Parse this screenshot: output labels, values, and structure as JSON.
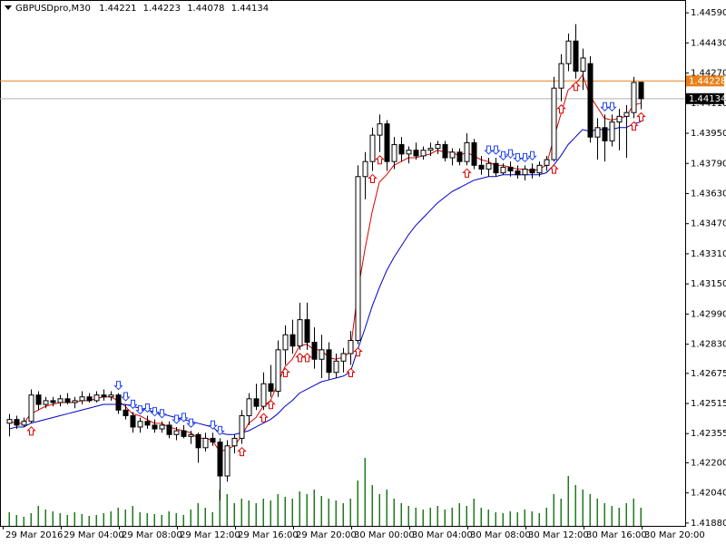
{
  "chart_data": {
    "type": "candlestick",
    "title": "GBPUSDpro,M30",
    "ylim": [
      1.41865,
      1.44658
    ],
    "yticks": [
      {
        "value": 1.4459,
        "label": "1.44590"
      },
      {
        "value": 1.4443,
        "label": "1.44430"
      },
      {
        "value": 1.4427,
        "label": "1.44270"
      },
      {
        "value": 1.4411,
        "label": "1.44110"
      },
      {
        "value": 1.4395,
        "label": "1.43950"
      },
      {
        "value": 1.4379,
        "label": "1.43790"
      },
      {
        "value": 1.4363,
        "label": "1.43630"
      },
      {
        "value": 1.4347,
        "label": "1.43470"
      },
      {
        "value": 1.4331,
        "label": "1.43310"
      },
      {
        "value": 1.4315,
        "label": "1.43150"
      },
      {
        "value": 1.4299,
        "label": "1.42990"
      },
      {
        "value": 1.4283,
        "label": "1.42830"
      },
      {
        "value": 1.42675,
        "label": "1.42675"
      },
      {
        "value": 1.42515,
        "label": "1.42515"
      },
      {
        "value": 1.42355,
        "label": "1.42355"
      },
      {
        "value": 1.422,
        "label": "1.42200"
      },
      {
        "value": 1.4204,
        "label": "1.42040"
      },
      {
        "value": 1.4188,
        "label": "1.41880"
      }
    ],
    "time_labels": [
      "29 Mar 2016",
      "29 Mar 04:00",
      "29 Mar 08:00",
      "29 Mar 12:00",
      "29 Mar 16:00",
      "29 Mar 20:00",
      "30 Mar 00:00",
      "30 Mar 04:00",
      "30 Mar 08:00",
      "30 Mar 12:00",
      "30 Mar 16:00",
      "30 Mar 20:00"
    ],
    "ask_line": {
      "value": 1.44228,
      "color": "#e8801a"
    },
    "bid_line_color": "#b0b0b0",
    "candles": [
      [
        1.4241,
        1.4246,
        1.4234,
        1.4243
      ],
      [
        1.4243,
        1.4245,
        1.4238,
        1.424
      ],
      [
        1.424,
        1.4244,
        1.4239,
        1.4242
      ],
      [
        1.4242,
        1.4259,
        1.4241,
        1.4256
      ],
      [
        1.4256,
        1.4258,
        1.4248,
        1.4251
      ],
      [
        1.4251,
        1.4255,
        1.4249,
        1.4253
      ],
      [
        1.4253,
        1.4255,
        1.425,
        1.4252
      ],
      [
        1.4252,
        1.4256,
        1.425,
        1.4254
      ],
      [
        1.4254,
        1.4257,
        1.4251,
        1.4252
      ],
      [
        1.4252,
        1.4255,
        1.4249,
        1.4253
      ],
      [
        1.4253,
        1.4258,
        1.4251,
        1.4255
      ],
      [
        1.4255,
        1.4257,
        1.4252,
        1.4253
      ],
      [
        1.4253,
        1.4258,
        1.4252,
        1.4256
      ],
      [
        1.4256,
        1.4259,
        1.4253,
        1.4255
      ],
      [
        1.4255,
        1.4258,
        1.4253,
        1.4256
      ],
      [
        1.4256,
        1.4257,
        1.4246,
        1.4248
      ],
      [
        1.4248,
        1.4251,
        1.4243,
        1.4245
      ],
      [
        1.4245,
        1.4247,
        1.4236,
        1.4239
      ],
      [
        1.4239,
        1.4244,
        1.4236,
        1.4242
      ],
      [
        1.4242,
        1.4245,
        1.4238,
        1.424
      ],
      [
        1.424,
        1.4243,
        1.4236,
        1.4238
      ],
      [
        1.4238,
        1.4242,
        1.4236,
        1.424
      ],
      [
        1.424,
        1.4242,
        1.4233,
        1.4235
      ],
      [
        1.4235,
        1.4239,
        1.4232,
        1.4237
      ],
      [
        1.4237,
        1.424,
        1.4233,
        1.4234
      ],
      [
        1.4234,
        1.4237,
        1.423,
        1.4235
      ],
      [
        1.4235,
        1.4236,
        1.422,
        1.4228
      ],
      [
        1.4228,
        1.4236,
        1.4226,
        1.4233
      ],
      [
        1.4233,
        1.4236,
        1.4229,
        1.4231
      ],
      [
        1.4231,
        1.4233,
        1.42,
        1.4213
      ],
      [
        1.4213,
        1.4232,
        1.421,
        1.4229
      ],
      [
        1.4229,
        1.4235,
        1.4225,
        1.4233
      ],
      [
        1.4233,
        1.4248,
        1.423,
        1.4245
      ],
      [
        1.4245,
        1.4257,
        1.424,
        1.4254
      ],
      [
        1.4254,
        1.4262,
        1.4248,
        1.425
      ],
      [
        1.425,
        1.4268,
        1.4248,
        1.4262
      ],
      [
        1.4262,
        1.4272,
        1.4255,
        1.4258
      ],
      [
        1.4258,
        1.4285,
        1.4255,
        1.428
      ],
      [
        1.428,
        1.4293,
        1.4272,
        1.4288
      ],
      [
        1.4288,
        1.4296,
        1.4278,
        1.4282
      ],
      [
        1.4282,
        1.4305,
        1.428,
        1.4296
      ],
      [
        1.4296,
        1.4305,
        1.428,
        1.4284
      ],
      [
        1.4284,
        1.4292,
        1.427,
        1.4275
      ],
      [
        1.4275,
        1.4288,
        1.4265,
        1.428
      ],
      [
        1.428,
        1.4284,
        1.4264,
        1.4268
      ],
      [
        1.4268,
        1.4278,
        1.4265,
        1.4274
      ],
      [
        1.4274,
        1.4281,
        1.4268,
        1.4278
      ],
      [
        1.4278,
        1.429,
        1.4272,
        1.4285
      ],
      [
        1.4285,
        1.4378,
        1.4283,
        1.4372
      ],
      [
        1.4372,
        1.4385,
        1.436,
        1.438
      ],
      [
        1.438,
        1.4398,
        1.4375,
        1.4394
      ],
      [
        1.4394,
        1.4405,
        1.4385,
        1.44
      ],
      [
        1.44,
        1.4402,
        1.4375,
        1.438
      ],
      [
        1.438,
        1.4393,
        1.4376,
        1.4389
      ],
      [
        1.4389,
        1.4393,
        1.438,
        1.4384
      ],
      [
        1.4384,
        1.4388,
        1.4379,
        1.4386
      ],
      [
        1.4386,
        1.439,
        1.4381,
        1.4383
      ],
      [
        1.4383,
        1.4388,
        1.4381,
        1.4386
      ],
      [
        1.4386,
        1.439,
        1.4383,
        1.4387
      ],
      [
        1.4387,
        1.4391,
        1.4384,
        1.4389
      ],
      [
        1.4389,
        1.4391,
        1.438,
        1.4382
      ],
      [
        1.4382,
        1.4387,
        1.4378,
        1.4385
      ],
      [
        1.4385,
        1.4387,
        1.4378,
        1.438
      ],
      [
        1.438,
        1.4395,
        1.4378,
        1.439
      ],
      [
        1.439,
        1.4392,
        1.4376,
        1.4378
      ],
      [
        1.4378,
        1.4383,
        1.4373,
        1.4376
      ],
      [
        1.4376,
        1.4382,
        1.4372,
        1.4379
      ],
      [
        1.4379,
        1.4382,
        1.4372,
        1.4374
      ],
      [
        1.4374,
        1.4379,
        1.4373,
        1.4377
      ],
      [
        1.4377,
        1.438,
        1.4372,
        1.4375
      ],
      [
        1.4375,
        1.4378,
        1.4371,
        1.4373
      ],
      [
        1.4373,
        1.4378,
        1.437,
        1.4376
      ],
      [
        1.4376,
        1.4379,
        1.4371,
        1.4374
      ],
      [
        1.4374,
        1.438,
        1.4372,
        1.4378
      ],
      [
        1.4378,
        1.4383,
        1.4375,
        1.4381
      ],
      [
        1.4381,
        1.4425,
        1.438,
        1.4419
      ],
      [
        1.4419,
        1.4437,
        1.4412,
        1.4432
      ],
      [
        1.4432,
        1.4448,
        1.4428,
        1.4444
      ],
      [
        1.4444,
        1.4453,
        1.4424,
        1.4428
      ],
      [
        1.4428,
        1.444,
        1.4418,
        1.4435
      ],
      [
        1.4432,
        1.4436,
        1.439,
        1.4393
      ],
      [
        1.4393,
        1.4403,
        1.4381,
        1.4398
      ],
      [
        1.4398,
        1.4405,
        1.438,
        1.4391
      ],
      [
        1.4391,
        1.4405,
        1.4388,
        1.4401
      ],
      [
        1.4401,
        1.4408,
        1.4386,
        1.4404
      ],
      [
        1.4404,
        1.441,
        1.4382,
        1.4406
      ],
      [
        1.4406,
        1.4425,
        1.4403,
        1.4422
      ],
      [
        1.44221,
        1.44223,
        1.44078,
        1.44134
      ]
    ],
    "volumes": [
      300,
      240,
      200,
      280,
      440,
      360,
      320,
      280,
      240,
      300,
      260,
      220,
      240,
      280,
      320,
      400,
      360,
      440,
      300,
      280,
      260,
      240,
      320,
      280,
      240,
      360,
      500,
      400,
      300,
      800,
      700,
      500,
      600,
      560,
      500,
      600,
      560,
      700,
      640,
      600,
      760,
      700,
      800,
      660,
      600,
      560,
      500,
      600,
      1000,
      1500,
      900,
      700,
      800,
      600,
      500,
      440,
      400,
      360,
      400,
      440,
      360,
      400,
      500,
      440,
      600,
      400,
      360,
      300,
      280,
      320,
      300,
      360,
      320,
      280,
      400,
      700,
      600,
      1100,
      900,
      800,
      700,
      600,
      500,
      440,
      400,
      500,
      600,
      400
    ],
    "volume_color": "#1f7a1f",
    "moving_averages": [
      {
        "color": "#e00000",
        "values": [
          1.4242,
          1.4241,
          1.4241,
          1.4246,
          1.4248,
          1.425,
          1.4251,
          1.4252,
          1.4252,
          1.4252,
          1.4253,
          1.4253,
          1.4254,
          1.4255,
          1.4255,
          1.4253,
          1.425,
          1.4246,
          1.4245,
          1.4243,
          1.4241,
          1.4241,
          1.4239,
          1.4238,
          1.4237,
          1.4236,
          1.4233,
          1.4233,
          1.4232,
          1.4226,
          1.4227,
          1.4229,
          1.4234,
          1.4241,
          1.4244,
          1.425,
          1.4253,
          1.4262,
          1.4271,
          1.4275,
          1.4282,
          1.4283,
          1.428,
          1.428,
          1.4276,
          1.4275,
          1.4276,
          1.4279,
          1.431,
          1.4333,
          1.4353,
          1.4369,
          1.4373,
          1.4378,
          1.438,
          1.4382,
          1.4382,
          1.4383,
          1.4384,
          1.4386,
          1.4385,
          1.4385,
          1.4383,
          1.4385,
          1.4383,
          1.4381,
          1.438,
          1.4378,
          1.4378,
          1.4377,
          1.4376,
          1.4376,
          1.4375,
          1.4376,
          1.4378,
          1.4392,
          1.4405,
          1.4418,
          1.4421,
          1.4426,
          1.4415,
          1.4409,
          1.4403,
          1.4402,
          1.4403,
          1.4404,
          1.441,
          1.4411
        ]
      },
      {
        "color": "#0000cc",
        "values": [
          1.4238,
          1.4239,
          1.4239,
          1.4241,
          1.4242,
          1.4243,
          1.4244,
          1.4245,
          1.4246,
          1.4247,
          1.4248,
          1.4249,
          1.425,
          1.4251,
          1.4251,
          1.4251,
          1.4251,
          1.425,
          1.4249,
          1.4248,
          1.4247,
          1.4246,
          1.4245,
          1.4244,
          1.4243,
          1.4242,
          1.4241,
          1.424,
          1.4239,
          1.4236,
          1.4235,
          1.4235,
          1.4236,
          1.4237,
          1.4239,
          1.4241,
          1.4243,
          1.4246,
          1.425,
          1.4253,
          1.4257,
          1.4259,
          1.4261,
          1.4263,
          1.4264,
          1.4265,
          1.4266,
          1.4268,
          1.428,
          1.4291,
          1.4303,
          1.4313,
          1.4322,
          1.4329,
          1.4335,
          1.4341,
          1.4346,
          1.435,
          1.4354,
          1.4358,
          1.4361,
          1.4364,
          1.4366,
          1.4368,
          1.437,
          1.4371,
          1.4372,
          1.4372,
          1.4373,
          1.4373,
          1.4373,
          1.4373,
          1.4373,
          1.4373,
          1.4374,
          1.4378,
          1.4383,
          1.4389,
          1.4393,
          1.4397,
          1.4396,
          1.4397,
          1.4397,
          1.4397,
          1.4398,
          1.4398,
          1.44,
          1.4401
        ]
      }
    ],
    "signals": {
      "up": [
        3,
        32,
        35,
        36,
        38,
        40,
        41,
        47,
        48,
        50,
        51,
        63,
        75,
        76,
        78,
        86,
        87
      ],
      "up_color": "#e00000",
      "down": [
        15,
        16,
        17,
        18,
        19,
        20,
        21,
        23,
        24,
        25,
        28,
        29,
        66,
        67,
        68,
        69,
        70,
        71,
        72,
        82,
        83
      ],
      "down_color": "#2244ee"
    }
  }
}
